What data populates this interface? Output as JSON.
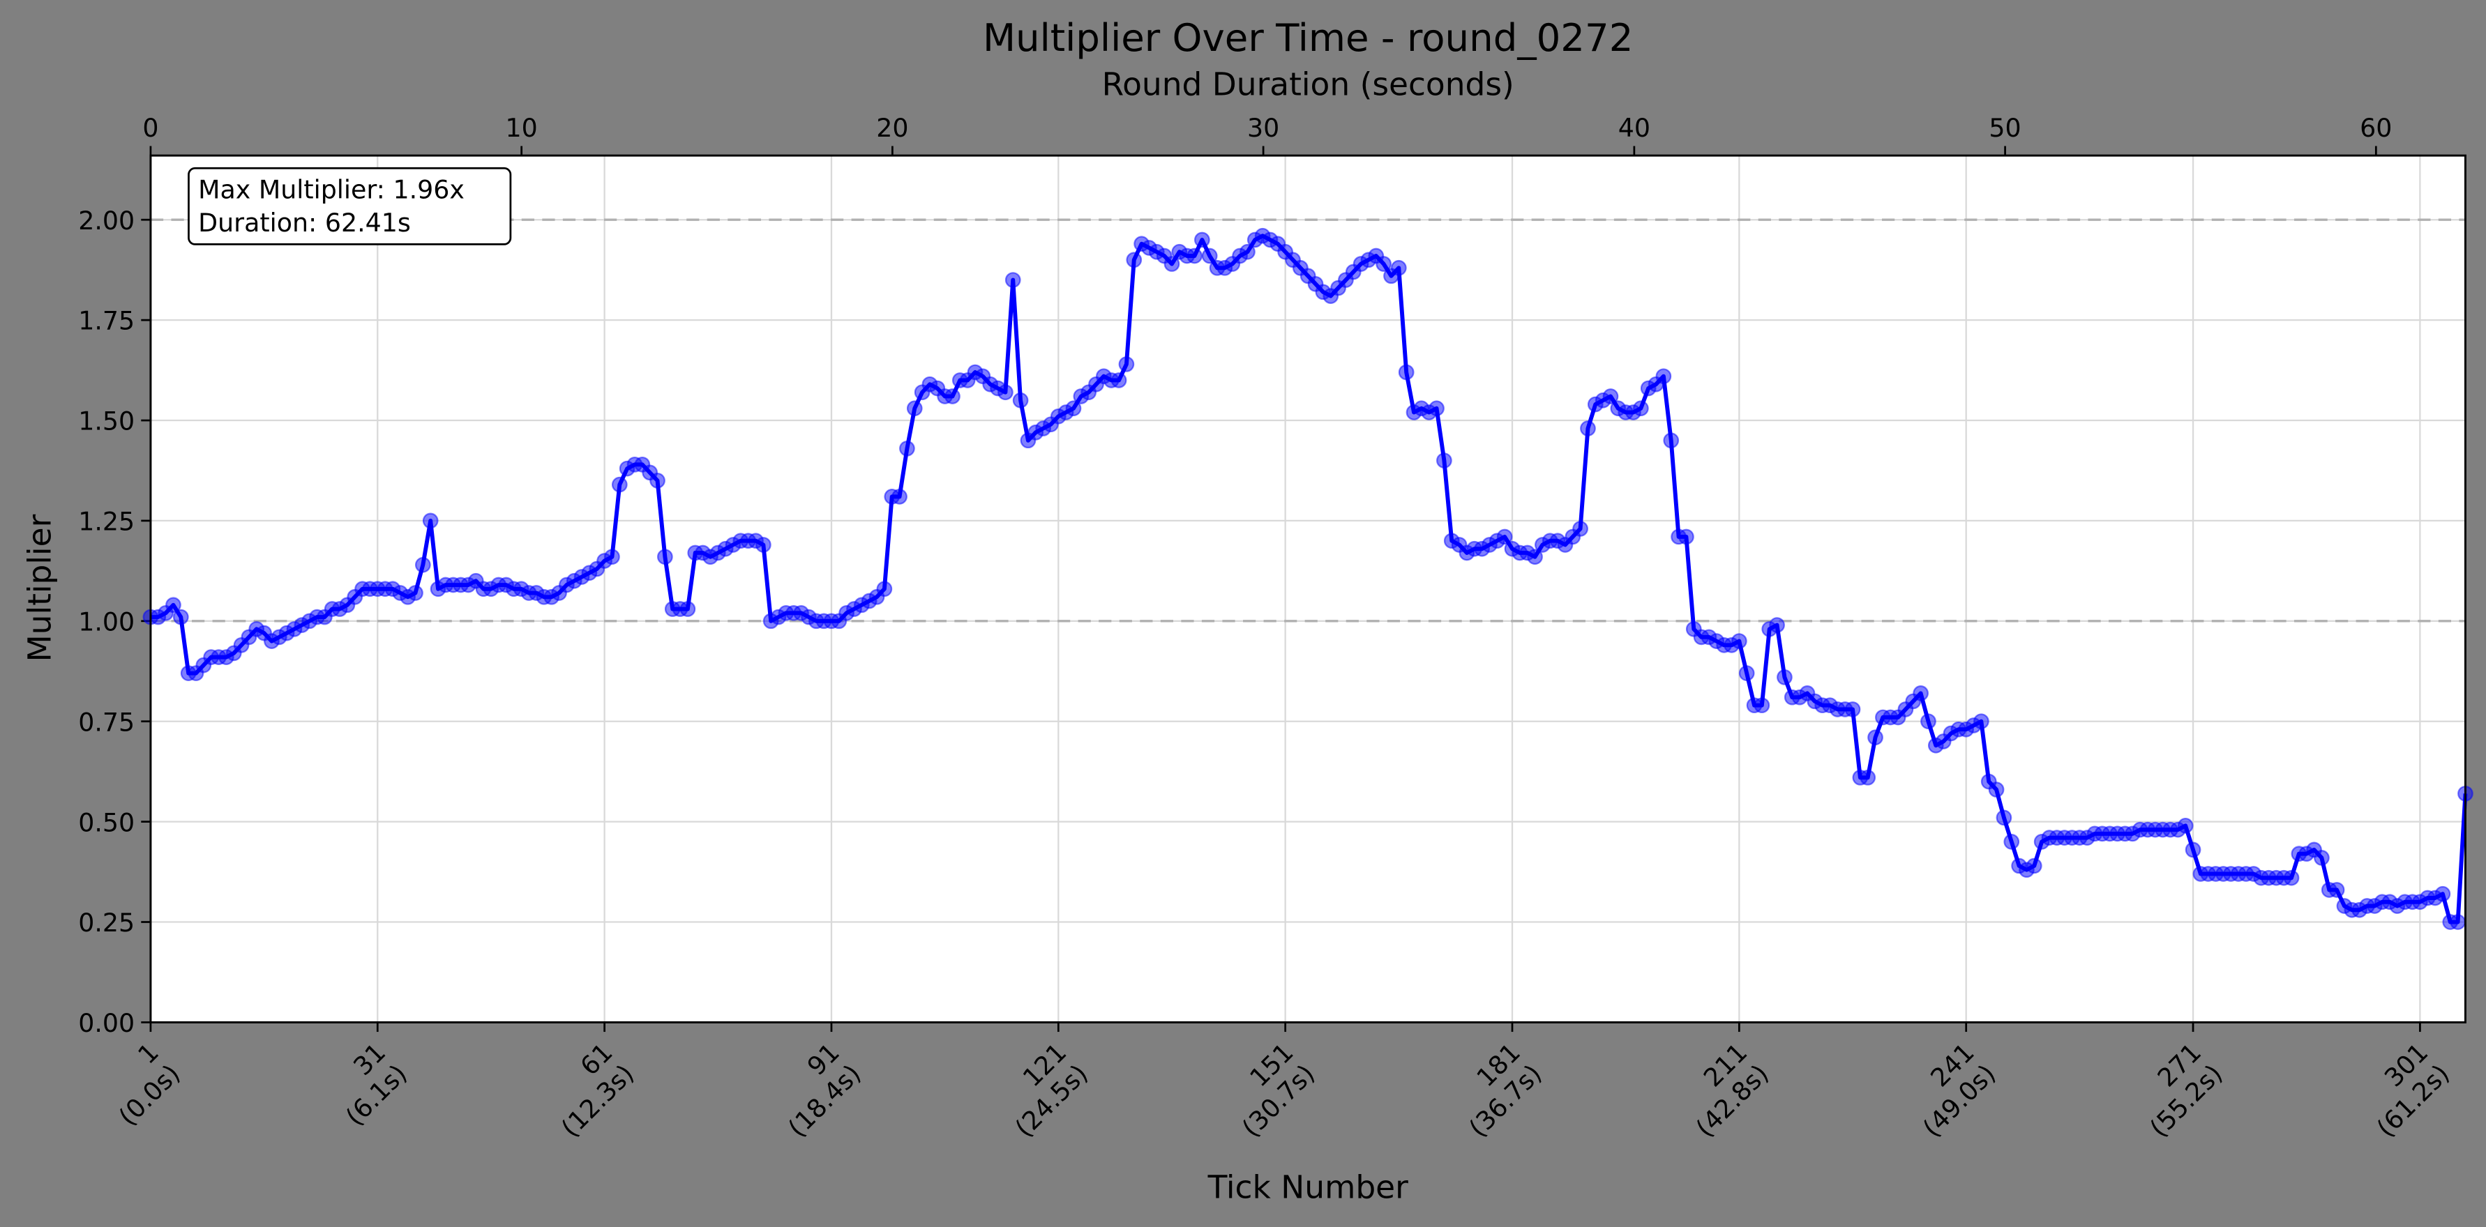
{
  "chart_data": {
    "type": "line",
    "title": "Multiplier Over Time - round_0272",
    "xlabel": "Tick Number",
    "ylabel": "Multiplier",
    "x2label": "Round Duration (seconds)",
    "annotation": [
      "Max Multiplier: 1.96x",
      "Duration: 62.41s"
    ],
    "color": "#0000ff",
    "grid": true,
    "reference_lines": [
      1,
      2
    ],
    "xlim": [
      1,
      307
    ],
    "xticks": [
      {
        "value": 1,
        "label": "1\n(0.0s)"
      },
      {
        "value": 31,
        "label": "31\n(6.1s)"
      },
      {
        "value": 61,
        "label": "61\n(12.3s)"
      },
      {
        "value": 91,
        "label": "91\n(18.4s)"
      },
      {
        "value": 121,
        "label": "121\n(24.5s)"
      },
      {
        "value": 151,
        "label": "151\n(30.7s)"
      },
      {
        "value": 181,
        "label": "181\n(36.7s)"
      },
      {
        "value": 211,
        "label": "211\n(42.8s)"
      },
      {
        "value": 241,
        "label": "241\n(49.0s)"
      },
      {
        "value": 271,
        "label": "271\n(55.2s)"
      },
      {
        "value": 301,
        "label": "301\n(61.2s)"
      }
    ],
    "x2lim": [
      0,
      62.41
    ],
    "x2ticks": [
      0,
      10,
      20,
      30,
      40,
      50,
      60
    ],
    "ylim": [
      0,
      2.16
    ],
    "yticks": [
      {
        "value": 0,
        "label": "0.00"
      },
      {
        "value": 0.25,
        "label": "0.25"
      },
      {
        "value": 0.5,
        "label": "0.50"
      },
      {
        "value": 0.75,
        "label": "0.75"
      },
      {
        "value": 1,
        "label": "1.00"
      },
      {
        "value": 1.25,
        "label": "1.25"
      },
      {
        "value": 1.5,
        "label": "1.50"
      },
      {
        "value": 1.75,
        "label": "1.75"
      },
      {
        "value": 2,
        "label": "2.00"
      }
    ],
    "x": [
      1,
      2,
      3,
      4,
      5,
      6,
      7,
      8,
      9,
      10,
      11,
      12,
      13,
      14,
      15,
      16,
      17,
      18,
      19,
      20,
      21,
      22,
      23,
      24,
      25,
      26,
      27,
      28,
      29,
      30,
      31,
      32,
      33,
      34,
      35,
      36,
      37,
      38,
      39,
      40,
      41,
      42,
      43,
      44,
      45,
      46,
      47,
      48,
      49,
      50,
      51,
      52,
      53,
      54,
      55,
      56,
      57,
      58,
      59,
      60,
      61,
      62,
      63,
      64,
      65,
      66,
      67,
      68,
      69,
      70,
      71,
      72,
      73,
      74,
      75,
      76,
      77,
      78,
      79,
      80,
      81,
      82,
      83,
      84,
      85,
      86,
      87,
      88,
      89,
      90,
      91,
      92,
      93,
      94,
      95,
      96,
      97,
      98,
      99,
      100,
      101,
      102,
      103,
      104,
      105,
      106,
      107,
      108,
      109,
      110,
      111,
      112,
      113,
      114,
      115,
      116,
      117,
      118,
      119,
      120,
      121,
      122,
      123,
      124,
      125,
      126,
      127,
      128,
      129,
      130,
      131,
      132,
      133,
      134,
      135,
      136,
      137,
      138,
      139,
      140,
      141,
      142,
      143,
      144,
      145,
      146,
      147,
      148,
      149,
      150,
      151,
      152,
      153,
      154,
      155,
      156,
      157,
      158,
      159,
      160,
      161,
      162,
      163,
      164,
      165,
      166,
      167,
      168,
      169,
      170,
      171,
      172,
      173,
      174,
      175,
      176,
      177,
      178,
      179,
      180,
      181,
      182,
      183,
      184,
      185,
      186,
      187,
      188,
      189,
      190,
      191,
      192,
      193,
      194,
      195,
      196,
      197,
      198,
      199,
      200,
      201,
      202,
      203,
      204,
      205,
      206,
      207,
      208,
      209,
      210,
      211,
      212,
      213,
      214,
      215,
      216,
      217,
      218,
      219,
      220,
      221,
      222,
      223,
      224,
      225,
      226,
      227,
      228,
      229,
      230,
      231,
      232,
      233,
      234,
      235,
      236,
      237,
      238,
      239,
      240,
      241,
      242,
      243,
      244,
      245,
      246,
      247,
      248,
      249,
      250,
      251,
      252,
      253,
      254,
      255,
      256,
      257,
      258,
      259,
      260,
      261,
      262,
      263,
      264,
      265,
      266,
      267,
      268,
      269,
      270,
      271,
      272,
      273,
      274,
      275,
      276,
      277,
      278,
      279,
      280,
      281,
      282,
      283,
      284,
      285,
      286,
      287,
      288,
      289,
      290,
      291,
      292,
      293,
      294,
      295,
      296,
      297,
      298,
      299,
      300,
      301,
      302,
      303,
      304,
      305,
      306,
      307
    ],
    "values": [
      1.01,
      1.01,
      1.02,
      1.04,
      1.01,
      0.87,
      0.87,
      0.89,
      0.91,
      0.91,
      0.91,
      0.92,
      0.94,
      0.96,
      0.98,
      0.97,
      0.95,
      0.96,
      0.97,
      0.98,
      0.99,
      1.0,
      1.01,
      1.01,
      1.03,
      1.03,
      1.04,
      1.06,
      1.08,
      1.08,
      1.08,
      1.08,
      1.08,
      1.07,
      1.06,
      1.07,
      1.14,
      1.25,
      1.08,
      1.09,
      1.09,
      1.09,
      1.09,
      1.1,
      1.08,
      1.08,
      1.09,
      1.09,
      1.08,
      1.08,
      1.07,
      1.07,
      1.06,
      1.06,
      1.07,
      1.09,
      1.1,
      1.11,
      1.12,
      1.13,
      1.15,
      1.16,
      1.34,
      1.38,
      1.39,
      1.39,
      1.37,
      1.35,
      1.16,
      1.03,
      1.03,
      1.03,
      1.17,
      1.17,
      1.16,
      1.17,
      1.18,
      1.19,
      1.2,
      1.2,
      1.2,
      1.19,
      1.0,
      1.01,
      1.02,
      1.02,
      1.02,
      1.01,
      1.0,
      1.0,
      1.0,
      1.0,
      1.02,
      1.03,
      1.04,
      1.05,
      1.06,
      1.08,
      1.31,
      1.31,
      1.43,
      1.53,
      1.57,
      1.59,
      1.58,
      1.56,
      1.56,
      1.6,
      1.6,
      1.62,
      1.61,
      1.59,
      1.58,
      1.57,
      1.85,
      1.55,
      1.45,
      1.47,
      1.48,
      1.49,
      1.51,
      1.52,
      1.53,
      1.56,
      1.57,
      1.59,
      1.61,
      1.6,
      1.6,
      1.64,
      1.9,
      1.94,
      1.93,
      1.92,
      1.91,
      1.89,
      1.92,
      1.91,
      1.91,
      1.95,
      1.91,
      1.88,
      1.88,
      1.89,
      1.91,
      1.92,
      1.95,
      1.96,
      1.95,
      1.94,
      1.92,
      1.9,
      1.88,
      1.86,
      1.84,
      1.82,
      1.81,
      1.83,
      1.85,
      1.87,
      1.89,
      1.9,
      1.91,
      1.89,
      1.86,
      1.88,
      1.62,
      1.52,
      1.53,
      1.52,
      1.53,
      1.4,
      1.2,
      1.19,
      1.17,
      1.18,
      1.18,
      1.19,
      1.2,
      1.21,
      1.18,
      1.17,
      1.17,
      1.16,
      1.19,
      1.2,
      1.2,
      1.19,
      1.21,
      1.23,
      1.48,
      1.54,
      1.55,
      1.56,
      1.53,
      1.52,
      1.52,
      1.53,
      1.58,
      1.59,
      1.61,
      1.45,
      1.21,
      1.21,
      0.98,
      0.96,
      0.96,
      0.95,
      0.94,
      0.94,
      0.95,
      0.87,
      0.79,
      0.79,
      0.98,
      0.99,
      0.86,
      0.81,
      0.81,
      0.82,
      0.8,
      0.79,
      0.79,
      0.78,
      0.78,
      0.78,
      0.61,
      0.61,
      0.71,
      0.76,
      0.76,
      0.76,
      0.78,
      0.8,
      0.82,
      0.75,
      0.69,
      0.7,
      0.72,
      0.73,
      0.73,
      0.74,
      0.75,
      0.6,
      0.58,
      0.51,
      0.45,
      0.39,
      0.38,
      0.39,
      0.45,
      0.46,
      0.46,
      0.46,
      0.46,
      0.46,
      0.46,
      0.47,
      0.47,
      0.47,
      0.47,
      0.47,
      0.47,
      0.48,
      0.48,
      0.48,
      0.48,
      0.48,
      0.48,
      0.49,
      0.43,
      0.37,
      0.37,
      0.37,
      0.37,
      0.37,
      0.37,
      0.37,
      0.37,
      0.36,
      0.36,
      0.36,
      0.36,
      0.36,
      0.42,
      0.42,
      0.43,
      0.41,
      0.33,
      0.33,
      0.29,
      0.28,
      0.28,
      0.29,
      0.29,
      0.3,
      0.3,
      0.29,
      0.3,
      0.3,
      0.3,
      0.31,
      0.31,
      0.32,
      0.25,
      0.25,
      0.57
    ]
  }
}
